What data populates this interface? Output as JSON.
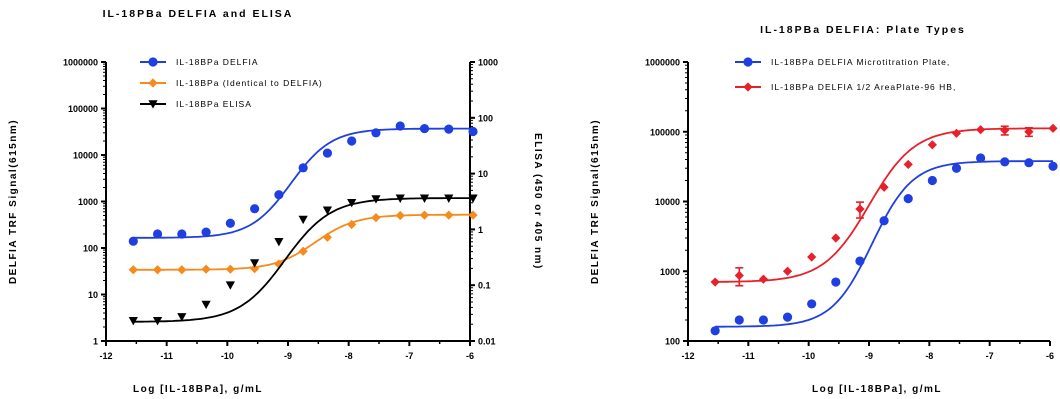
{
  "chart_data": [
    {
      "type": "scatter",
      "title": "IL-18PBa DELFIA and ELISA",
      "xlabel": "Log [IL-18BPa], g/mL",
      "ylabel": "DELFIA TRF Signal(615nm)",
      "y2label": "ELISA (450 or 405 nm)",
      "xlim": [
        -12,
        -6
      ],
      "ylim": [
        1,
        1000000
      ],
      "y2lim": [
        0.01,
        1000
      ],
      "yscale": "log",
      "y2scale": "log",
      "x_ticks": [
        "-12",
        "-11",
        "-10",
        "-9",
        "-8",
        "-7",
        "-6"
      ],
      "y_ticks": [
        "1",
        "10",
        "100",
        "1000",
        "10000",
        "100000",
        "1000000"
      ],
      "y2_ticks": [
        "0.01",
        "0.1",
        "1",
        "10",
        "100",
        "1000"
      ],
      "legend_position": "top-left",
      "grid": false,
      "series": [
        {
          "name": "IL-18BPa  DELFIA",
          "color": "#1f3fe0",
          "marker": "circle",
          "axis": "left",
          "x": [
            -11.55,
            -11.15,
            -10.75,
            -10.35,
            -9.95,
            -9.55,
            -9.15,
            -8.75,
            -8.35,
            -7.95,
            -7.55,
            -7.15,
            -6.75,
            -6.35,
            -5.95
          ],
          "y": [
            140,
            200,
            200,
            220,
            340,
            700,
            1400,
            5300,
            11000,
            20000,
            30000,
            42000,
            37000,
            36000,
            32000
          ],
          "fit": {
            "bottom": 165,
            "top": 37000,
            "logEC50": -8.95,
            "hill": 1.3
          }
        },
        {
          "name": "IL-18BPa (Identical to DELFIA)",
          "color": "#f58b1c",
          "marker": "diamond",
          "axis": "left",
          "x": [
            -11.55,
            -11.15,
            -10.75,
            -10.35,
            -9.95,
            -9.55,
            -9.15,
            -8.75,
            -8.35,
            -7.95,
            -7.55,
            -7.15,
            -6.75,
            -6.35,
            -5.95
          ],
          "y": [
            34,
            34,
            34,
            35,
            35,
            36,
            45,
            85,
            170,
            320,
            450,
            500,
            510,
            510,
            510
          ],
          "fit": {
            "bottom": 34,
            "top": 520,
            "logEC50": -8.55,
            "hill": 1.3
          }
        },
        {
          "name": "IL-18BPa  ELISA",
          "color": "#000000",
          "marker": "triangle-down",
          "axis": "right",
          "x": [
            -11.55,
            -11.15,
            -10.75,
            -10.35,
            -9.95,
            -9.55,
            -9.15,
            -8.75,
            -8.35,
            -7.95,
            -7.55,
            -7.15,
            -6.75,
            -6.35,
            -5.95
          ],
          "y": [
            0.023,
            0.023,
            0.027,
            0.045,
            0.1,
            0.25,
            0.6,
            1.5,
            2.2,
            3.0,
            3.5,
            3.6,
            3.6,
            3.6,
            3.6
          ],
          "fit": {
            "bottom": 0.022,
            "top": 3.65,
            "logEC50": -9.05,
            "hill": 1.15
          }
        }
      ]
    },
    {
      "type": "scatter",
      "title": "IL-18PBa DELFIA: Plate Types",
      "xlabel": "Log [IL-18BPa], g/mL",
      "ylabel": "DELFIA TRF Signal(615nm)",
      "xlim": [
        -12,
        -6
      ],
      "ylim": [
        100,
        1000000
      ],
      "yscale": "log",
      "x_ticks": [
        "-12",
        "-11",
        "-10",
        "-9",
        "-8",
        "-7",
        "-6"
      ],
      "y_ticks": [
        "100",
        "1000",
        "10000",
        "100000",
        "1000000"
      ],
      "legend_position": "top-left",
      "grid": false,
      "series": [
        {
          "name": "IL-18BPa DELFIA Microtitration Plate,",
          "color": "#1f3fe0",
          "marker": "circle",
          "x": [
            -11.55,
            -11.15,
            -10.75,
            -10.35,
            -9.95,
            -9.55,
            -9.15,
            -8.75,
            -8.35,
            -7.95,
            -7.55,
            -7.15,
            -6.75,
            -6.35,
            -5.95
          ],
          "y": [
            140,
            200,
            200,
            220,
            340,
            700,
            1400,
            5300,
            11000,
            20000,
            30000,
            42000,
            37000,
            36000,
            32000
          ],
          "fit": {
            "bottom": 160,
            "top": 38000,
            "logEC50": -8.95,
            "hill": 1.3
          }
        },
        {
          "name": "IL-18BPa DELFIA 1/2 AreaPlate-96 HB,",
          "color": "#e8202a",
          "marker": "diamond",
          "x": [
            -11.55,
            -11.15,
            -10.75,
            -10.35,
            -9.95,
            -9.55,
            -9.15,
            -8.75,
            -8.35,
            -7.95,
            -7.55,
            -7.15,
            -6.75,
            -6.35,
            -5.95
          ],
          "y": [
            700,
            870,
            770,
            1000,
            1600,
            3000,
            7800,
            16000,
            34000,
            65000,
            95000,
            107000,
            105000,
            100000,
            112000
          ],
          "errors": [
            0,
            250,
            0,
            0,
            0,
            0,
            2000,
            0,
            0,
            0,
            0,
            0,
            15000,
            14000,
            0
          ],
          "fit": {
            "bottom": 700,
            "top": 112000,
            "logEC50": -9.0,
            "hill": 1.15
          }
        }
      ]
    }
  ]
}
